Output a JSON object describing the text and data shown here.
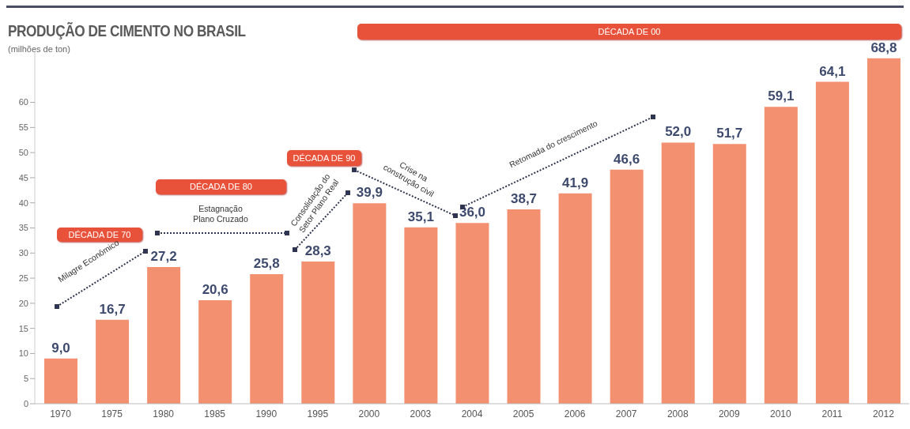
{
  "chart_data": {
    "type": "bar",
    "title": "PRODUÇÃO DE CIMENTO NO BRASIL",
    "subtitle": "(milhões de ton)",
    "categories": [
      "1970",
      "1975",
      "1980",
      "1985",
      "1990",
      "1995",
      "2000",
      "2003",
      "2004",
      "2005",
      "2006",
      "2007",
      "2008",
      "2009",
      "2010",
      "2011",
      "2012"
    ],
    "values": [
      9.0,
      16.7,
      27.2,
      20.6,
      25.8,
      28.3,
      39.9,
      35.1,
      36.0,
      38.7,
      41.9,
      46.6,
      52.0,
      51.7,
      59.1,
      64.1,
      68.8
    ],
    "value_labels": [
      "9,0",
      "16,7",
      "27,2",
      "20,6",
      "25,8",
      "28,3",
      "39,9",
      "35,1",
      "36,0",
      "38,7",
      "41,9",
      "46,6",
      "52,0",
      "51,7",
      "59,1",
      "64,1",
      "68,8"
    ],
    "color": "#f39070",
    "ylim": [
      0,
      70
    ],
    "yticks": [
      0,
      5,
      10,
      15,
      20,
      25,
      30,
      35,
      40,
      45,
      50,
      55,
      60
    ],
    "grid": false,
    "annotations": [
      "DÉCADA DE 70",
      "DÉCADA DE 80",
      "DÉCADA DE 90",
      "DÉCADA DE 00",
      "Milagre Econômico",
      "Estagnação Plano Cruzado",
      "Consolidação do Setor Plano Real",
      "Crise na construção civil",
      "Retomada do crescimento"
    ]
  }
}
